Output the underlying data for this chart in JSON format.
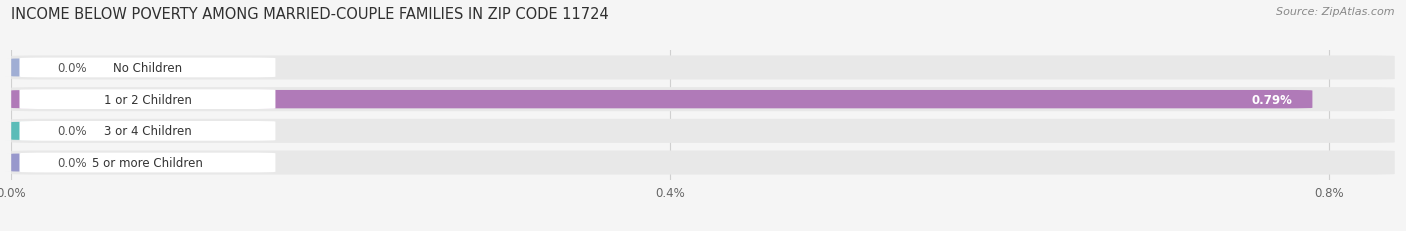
{
  "title": "INCOME BELOW POVERTY AMONG MARRIED-COUPLE FAMILIES IN ZIP CODE 11724",
  "source": "Source: ZipAtlas.com",
  "categories": [
    "No Children",
    "1 or 2 Children",
    "3 or 4 Children",
    "5 or more Children"
  ],
  "values": [
    0.0,
    0.79,
    0.0,
    0.0
  ],
  "bar_colors": [
    "#a0aed4",
    "#b07ab8",
    "#5bbcb8",
    "#9898cc"
  ],
  "bar_bg_color": "#e8e8e8",
  "xlim_max": 0.84,
  "xticks": [
    0.0,
    0.4,
    0.8
  ],
  "xtick_labels": [
    "0.0%",
    "0.4%",
    "0.8%"
  ],
  "title_fontsize": 10.5,
  "tick_fontsize": 8.5,
  "bar_label_fontsize": 8.5,
  "category_fontsize": 8.5,
  "value_label_color": "#555555",
  "background_color": "#f5f5f5",
  "grid_color": "#d0d0d0"
}
